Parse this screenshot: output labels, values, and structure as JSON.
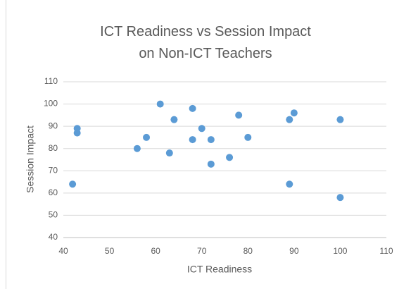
{
  "chart_data": {
    "type": "scatter",
    "title": "ICT Readiness vs Session Impact on Non-ICT Teachers",
    "x_label": "ICT Readiness",
    "y_label": "Session Impact",
    "color": "#5b9bd5",
    "x": [
      42,
      43,
      43,
      56,
      58,
      61,
      63,
      64,
      68,
      68,
      70,
      72,
      72,
      76,
      78,
      80,
      89,
      89,
      90,
      100,
      100
    ],
    "y": [
      64,
      89,
      87,
      80,
      85,
      100,
      78,
      93,
      98,
      84,
      89,
      73,
      84,
      76,
      95,
      85,
      93,
      64,
      96,
      93,
      58
    ],
    "xlim": [
      40,
      110
    ],
    "xticks": [
      40,
      50,
      60,
      70,
      80,
      90,
      100,
      110
    ],
    "ylim": [
      40,
      110
    ],
    "yticks": [
      40,
      50,
      60,
      70,
      80,
      90,
      100,
      110
    ],
    "grid": true
  }
}
